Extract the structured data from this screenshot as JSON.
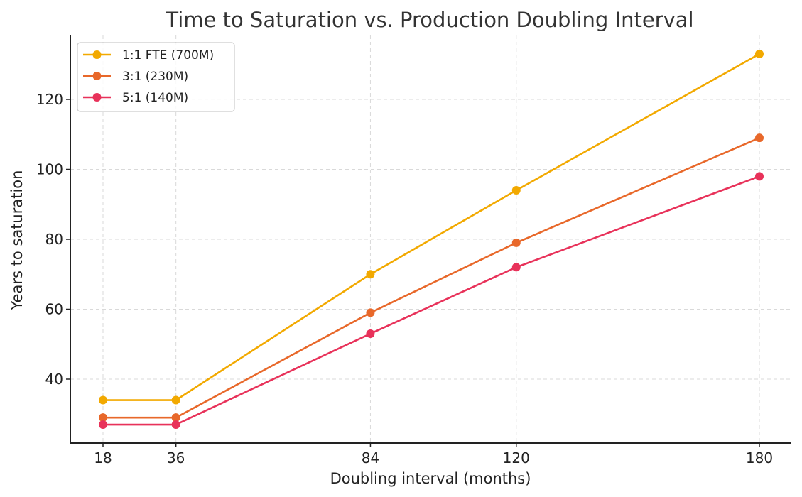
{
  "chart_data": {
    "type": "line",
    "title": "Time to Saturation vs. Production Doubling Interval",
    "xlabel": "Doubling interval (months)",
    "ylabel": "Years to saturation",
    "x": [
      18,
      36,
      84,
      120,
      180
    ],
    "x_tick_labels": [
      "18",
      "36",
      "84",
      "120",
      "180"
    ],
    "y_ticks": [
      40,
      60,
      80,
      100,
      120
    ],
    "y_tick_labels": [
      "40",
      "60",
      "80",
      "100",
      "120"
    ],
    "xlim": [
      6,
      189
    ],
    "ylim": [
      22,
      138
    ],
    "grid": true,
    "legend_position": "top-left",
    "series": [
      {
        "name": "1:1 FTE (700M)",
        "color": "#F2A900",
        "values": [
          34,
          34,
          70,
          94,
          133
        ]
      },
      {
        "name": "3:1 (230M)",
        "color": "#E8682A",
        "values": [
          29,
          29,
          59,
          79,
          109
        ]
      },
      {
        "name": "5:1 (140M)",
        "color": "#E8325A",
        "values": [
          27,
          27,
          53,
          72,
          98
        ]
      }
    ]
  }
}
